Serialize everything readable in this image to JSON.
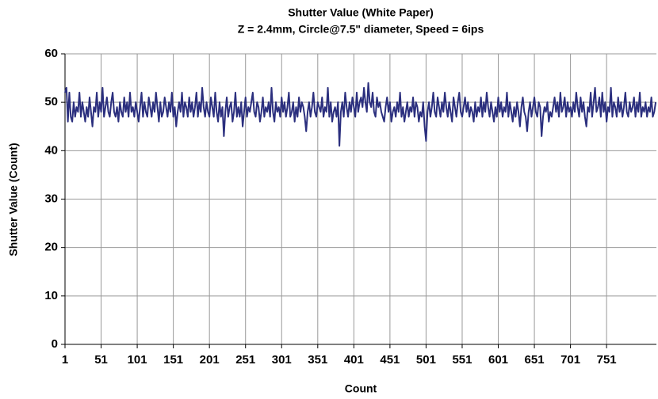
{
  "chart_data": {
    "type": "line",
    "title": "Shutter Value (White Paper)",
    "subtitle": "Z = 2.4mm, Circle@7.5\" diameter, Speed = 6ips",
    "x_label": "Count",
    "y_label": "Shutter Value (Count)",
    "xlim": [
      1,
      820
    ],
    "xticks": [
      1,
      51,
      101,
      151,
      201,
      251,
      301,
      351,
      401,
      451,
      501,
      551,
      601,
      651,
      701,
      751
    ],
    "ylim": [
      0,
      60
    ],
    "yticks": [
      0,
      10,
      20,
      30,
      40,
      50,
      60
    ],
    "grid": true,
    "x": [
      1,
      3,
      5,
      7,
      9,
      11,
      13,
      15,
      17,
      19,
      21,
      23,
      25,
      27,
      29,
      31,
      33,
      35,
      37,
      39,
      41,
      43,
      45,
      47,
      49,
      51,
      53,
      55,
      57,
      59,
      61,
      63,
      65,
      67,
      69,
      71,
      73,
      75,
      77,
      79,
      81,
      83,
      85,
      87,
      89,
      91,
      93,
      95,
      97,
      99,
      101,
      103,
      105,
      107,
      109,
      111,
      113,
      115,
      117,
      119,
      121,
      123,
      125,
      127,
      129,
      131,
      133,
      135,
      137,
      139,
      141,
      143,
      145,
      147,
      149,
      151,
      153,
      155,
      157,
      159,
      161,
      163,
      165,
      167,
      169,
      171,
      173,
      175,
      177,
      179,
      181,
      183,
      185,
      187,
      189,
      191,
      193,
      195,
      197,
      199,
      201,
      203,
      205,
      207,
      209,
      211,
      213,
      215,
      217,
      219,
      221,
      223,
      225,
      227,
      229,
      231,
      233,
      235,
      237,
      239,
      241,
      243,
      245,
      247,
      249,
      251,
      253,
      255,
      257,
      259,
      261,
      263,
      265,
      267,
      269,
      271,
      273,
      275,
      277,
      279,
      281,
      283,
      285,
      287,
      289,
      291,
      293,
      295,
      297,
      299,
      301,
      303,
      305,
      307,
      309,
      311,
      313,
      315,
      317,
      319,
      321,
      323,
      325,
      327,
      329,
      331,
      333,
      335,
      337,
      339,
      341,
      343,
      345,
      347,
      349,
      351,
      353,
      355,
      357,
      359,
      361,
      363,
      365,
      367,
      369,
      371,
      373,
      375,
      377,
      379,
      381,
      383,
      385,
      387,
      389,
      391,
      393,
      395,
      397,
      399,
      401,
      403,
      405,
      407,
      409,
      411,
      413,
      415,
      417,
      419,
      421,
      423,
      425,
      427,
      429,
      431,
      433,
      435,
      437,
      439,
      441,
      443,
      445,
      447,
      449,
      451,
      453,
      455,
      457,
      459,
      461,
      463,
      465,
      467,
      469,
      471,
      473,
      475,
      477,
      479,
      481,
      483,
      485,
      487,
      489,
      491,
      493,
      495,
      497,
      499,
      501,
      503,
      505,
      507,
      509,
      511,
      513,
      515,
      517,
      519,
      521,
      523,
      525,
      527,
      529,
      531,
      533,
      535,
      537,
      539,
      541,
      543,
      545,
      547,
      549,
      551,
      553,
      555,
      557,
      559,
      561,
      563,
      565,
      567,
      569,
      571,
      573,
      575,
      577,
      579,
      581,
      583,
      585,
      587,
      589,
      591,
      593,
      595,
      597,
      599,
      601,
      603,
      605,
      607,
      609,
      611,
      613,
      615,
      617,
      619,
      621,
      623,
      625,
      627,
      629,
      631,
      633,
      635,
      637,
      639,
      641,
      643,
      645,
      647,
      649,
      651,
      653,
      655,
      657,
      659,
      661,
      663,
      665,
      667,
      669,
      671,
      673,
      675,
      677,
      679,
      681,
      683,
      685,
      687,
      689,
      691,
      693,
      695,
      697,
      699,
      701,
      703,
      705,
      707,
      709,
      711,
      713,
      715,
      717,
      719,
      721,
      723,
      725,
      727,
      729,
      731,
      733,
      735,
      737,
      739,
      741,
      743,
      745,
      747,
      749,
      751,
      753,
      755,
      757,
      759,
      761,
      763,
      765,
      767,
      769,
      771,
      773,
      775,
      777,
      779,
      781,
      783,
      785,
      787,
      789,
      791,
      793,
      795,
      797,
      799,
      801,
      803,
      805,
      807,
      809,
      811,
      813,
      815,
      817,
      819
    ],
    "series": [
      {
        "name": "Shutter Value",
        "color": "#2b2f7e",
        "values": [
          52,
          53,
          46,
          52,
          47,
          46,
          50,
          47,
          49,
          48,
          52,
          47,
          50,
          48,
          46,
          49,
          47,
          51,
          48,
          45,
          49,
          48,
          52,
          47,
          50,
          48,
          53,
          47,
          49,
          51,
          48,
          47,
          50,
          52,
          48,
          47,
          49,
          46,
          50,
          48,
          47,
          51,
          48,
          50,
          47,
          52,
          48,
          49,
          47,
          50,
          48,
          46,
          49,
          52,
          47,
          50,
          48,
          47,
          51,
          49,
          47,
          50,
          48,
          52,
          49,
          46,
          50,
          47,
          48,
          51,
          49,
          47,
          50,
          48,
          52,
          47,
          49,
          45,
          48,
          50,
          48,
          52,
          47,
          50,
          49,
          47,
          51,
          48,
          50,
          47,
          49,
          52,
          47,
          50,
          48,
          53,
          49,
          47,
          50,
          48,
          47,
          51,
          49,
          47,
          52,
          48,
          46,
          50,
          47,
          49,
          43,
          48,
          51,
          47,
          49,
          50,
          46,
          48,
          52,
          47,
          49,
          47,
          50,
          45,
          48,
          51,
          47,
          49,
          48,
          50,
          52,
          48,
          47,
          50,
          49,
          46,
          48,
          51,
          47,
          49,
          48,
          50,
          47,
          53,
          48,
          46,
          50,
          48,
          49,
          47,
          51,
          48,
          50,
          47,
          49,
          52,
          47,
          48,
          50,
          46,
          49,
          47,
          51,
          48,
          50,
          49,
          47,
          44,
          48,
          50,
          47,
          49,
          52,
          48,
          47,
          50,
          49,
          48,
          51,
          47,
          49,
          48,
          53,
          47,
          50,
          46,
          48,
          49,
          47,
          50,
          41,
          48,
          50,
          47,
          52,
          49,
          47,
          50,
          48,
          51,
          49,
          47,
          52,
          48,
          50,
          51,
          49,
          53,
          50,
          48,
          54,
          50,
          49,
          52,
          48,
          47,
          51,
          49,
          50,
          48,
          47,
          46,
          49,
          51,
          48,
          50,
          46,
          48,
          49,
          47,
          50,
          48,
          52,
          47,
          49,
          46,
          48,
          50,
          47,
          49,
          48,
          51,
          47,
          50,
          49,
          46,
          48,
          47,
          50,
          45,
          42,
          48,
          50,
          47,
          49,
          52,
          48,
          47,
          51,
          49,
          47,
          50,
          48,
          52,
          49,
          47,
          50,
          48,
          46,
          51,
          49,
          47,
          50,
          52,
          48,
          47,
          49,
          51,
          48,
          50,
          47,
          49,
          48,
          46,
          50,
          47,
          49,
          48,
          51,
          47,
          50,
          48,
          52,
          49,
          47,
          50,
          48,
          46,
          49,
          47,
          51,
          48,
          50,
          47,
          49,
          48,
          52,
          47,
          50,
          48,
          46,
          49,
          47,
          50,
          48,
          45,
          49,
          51,
          48,
          47,
          44,
          48,
          50,
          47,
          49,
          51,
          48,
          47,
          50,
          49,
          43,
          47,
          49,
          48,
          50,
          46,
          48,
          47,
          49,
          51,
          48,
          50,
          47,
          52,
          48,
          49,
          51,
          47,
          50,
          48,
          49,
          47,
          50,
          48,
          52,
          49,
          47,
          51,
          48,
          50,
          47,
          45,
          49,
          48,
          52,
          47,
          50,
          53,
          48,
          49,
          51,
          47,
          52,
          48,
          50,
          46,
          49,
          48,
          53,
          47,
          50,
          49,
          47,
          51,
          48,
          50,
          47,
          49,
          52,
          48,
          47,
          50,
          48,
          49,
          51,
          47,
          50,
          48,
          52,
          47,
          49,
          48,
          50,
          47,
          49,
          48,
          51,
          47,
          48,
          50
        ]
      }
    ]
  }
}
